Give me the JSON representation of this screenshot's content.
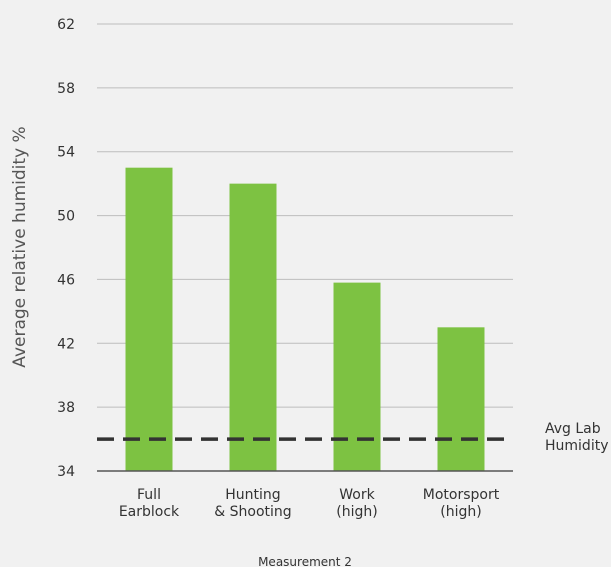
{
  "chart_data": {
    "type": "bar",
    "categories": [
      [
        "Full",
        "Earblock"
      ],
      [
        "Hunting",
        "& Shooting"
      ],
      [
        "Work",
        "(high)"
      ],
      [
        "Motorsport",
        "(high)"
      ]
    ],
    "series": [
      {
        "values": [
          53,
          52,
          45.8,
          43
        ]
      }
    ],
    "reference_line": {
      "value": 36,
      "label": [
        "Avg Lab",
        "Humidity"
      ],
      "style": "dashed"
    },
    "ylabel": "Average relative humidity %",
    "xlabel": "Measurement 2",
    "ylim": [
      34,
      62
    ],
    "yticks": [
      34,
      38,
      42,
      46,
      50,
      54,
      58,
      62
    ],
    "grid": "horizontal",
    "colors": {
      "bar": "#7dc242",
      "grid": "#bdbdbd",
      "axis": "#555555",
      "reference_line": "#333333",
      "text": "#333333"
    }
  }
}
